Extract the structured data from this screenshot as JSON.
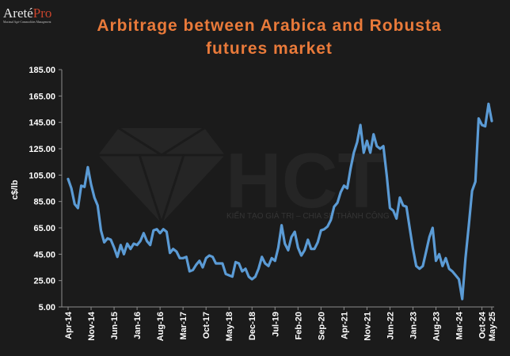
{
  "logo": {
    "brand_main": "Areté",
    "brand_accent": "Pro",
    "tagline": "Maximal Agri-Commodities Management"
  },
  "watermark": {
    "letters": "HCT",
    "slogan": "KIẾN TẠO GIÁ TRỊ – CHIA SẺ THÀNH CÔNG"
  },
  "colors": {
    "background": "#1b1b1b",
    "line": "#5b9bd5",
    "title": "#e97a3a",
    "text": "#ffffff"
  },
  "chart_data": {
    "type": "line",
    "title_lines": [
      "Arbitrage between Arabica and Robusta",
      "futures market"
    ],
    "xlabel": "",
    "ylabel": "c$/lb",
    "ylim": [
      5,
      185
    ],
    "yticks": [
      "185.00",
      "165.00",
      "145.00",
      "125.00",
      "105.00",
      "85.00",
      "65.00",
      "45.00",
      "25.00",
      "5.00"
    ],
    "xticks": [
      "Apr-14",
      "Nov-14",
      "Jun-15",
      "Jan-16",
      "Aug-16",
      "Mar-17",
      "Oct-17",
      "May-18",
      "Dec-18",
      "Jul-19",
      "Feb-20",
      "Sep-20",
      "Apr-21",
      "Nov-21",
      "Jun-22",
      "Jan-23",
      "Aug-23",
      "Mar-24",
      "Oct-24",
      "May-25"
    ],
    "x_start": "Apr-14",
    "grid": false,
    "legend": "none",
    "series": [
      {
        "values": [
          102,
          95,
          83,
          80,
          97,
          96,
          111,
          98,
          88,
          82,
          63,
          54,
          57,
          56,
          50,
          43,
          52,
          45,
          53,
          49,
          53,
          52,
          55,
          61,
          55,
          52,
          63,
          64,
          61,
          64,
          62,
          46,
          49,
          47,
          42,
          42,
          43,
          32,
          33,
          37,
          40,
          35,
          42,
          44,
          43,
          38,
          38,
          38,
          30,
          29,
          28,
          39,
          38,
          32,
          34,
          28,
          26,
          28,
          34,
          43,
          38,
          36,
          42,
          40,
          50,
          67,
          53,
          48,
          58,
          62,
          50,
          44,
          48,
          56,
          49,
          49,
          54,
          63,
          64,
          66,
          71,
          81,
          84,
          92,
          97,
          95,
          110,
          122,
          130,
          143,
          122,
          131,
          122,
          136,
          127,
          125,
          127,
          105,
          80,
          78,
          72,
          88,
          82,
          81,
          65,
          49,
          36,
          34,
          36,
          47,
          58,
          65,
          40,
          45,
          36,
          42,
          34,
          32,
          29,
          26,
          11,
          42,
          67,
          93,
          100,
          148,
          143,
          142,
          159,
          146
        ]
      }
    ]
  }
}
